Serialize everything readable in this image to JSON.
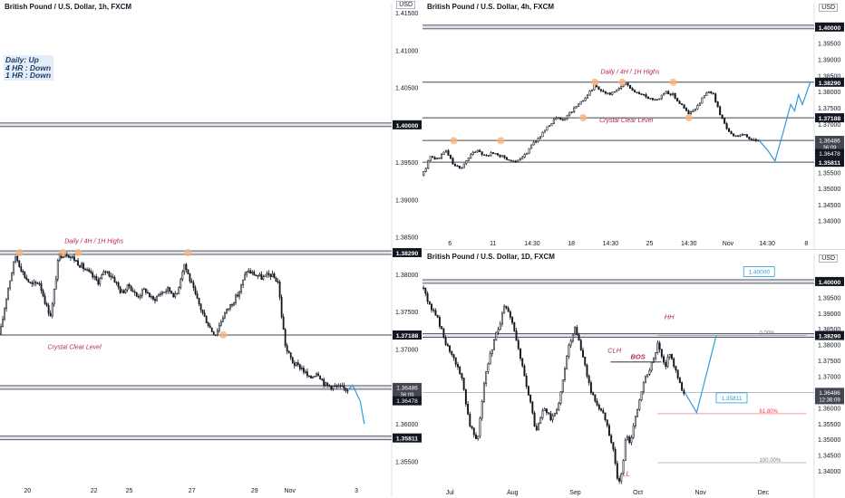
{
  "panels": [
    {
      "id": "p1",
      "title": "British Pound / U.S. Dollar, 1h, FXCM",
      "usd_label": "USD",
      "chart_data": {
        "type": "candlestick",
        "title": "British Pound / U.S. Dollar, 1h, FXCM",
        "ylim": [
          1.3525,
          1.415
        ],
        "yticks": [
          "1.35500",
          "1.36000",
          "1.36500",
          "1.37000",
          "1.37500",
          "1.38000",
          "1.38500",
          "1.39000",
          "1.39500",
          "1.40000",
          "1.40500",
          "1.41000",
          "1.41500"
        ],
        "xticks": [
          {
            "label": "20",
            "x": 0.07
          },
          {
            "label": "22",
            "x": 0.24
          },
          {
            "label": "25",
            "x": 0.33
          },
          {
            "label": "27",
            "x": 0.49
          },
          {
            "label": "29",
            "x": 0.65
          },
          {
            "label": "Nov",
            "x": 0.74
          },
          {
            "label": "3",
            "x": 0.91
          }
        ],
        "close_path": [
          [
            0.0,
            1.372
          ],
          [
            0.02,
            1.378
          ],
          [
            0.04,
            1.3825
          ],
          [
            0.06,
            1.38
          ],
          [
            0.08,
            1.3785
          ],
          [
            0.1,
            1.379
          ],
          [
            0.12,
            1.3755
          ],
          [
            0.13,
            1.3745
          ],
          [
            0.15,
            1.3825
          ],
          [
            0.17,
            1.3828
          ],
          [
            0.19,
            1.382
          ],
          [
            0.21,
            1.381
          ],
          [
            0.23,
            1.38
          ],
          [
            0.25,
            1.379
          ],
          [
            0.27,
            1.3805
          ],
          [
            0.29,
            1.3795
          ],
          [
            0.31,
            1.3775
          ],
          [
            0.33,
            1.3785
          ],
          [
            0.35,
            1.377
          ],
          [
            0.37,
            1.378
          ],
          [
            0.39,
            1.3765
          ],
          [
            0.41,
            1.3775
          ],
          [
            0.43,
            1.378
          ],
          [
            0.45,
            1.377
          ],
          [
            0.47,
            1.3815
          ],
          [
            0.48,
            1.38
          ],
          [
            0.5,
            1.377
          ],
          [
            0.52,
            1.3745
          ],
          [
            0.54,
            1.3725
          ],
          [
            0.55,
            1.372
          ],
          [
            0.57,
            1.3745
          ],
          [
            0.59,
            1.376
          ],
          [
            0.61,
            1.3775
          ],
          [
            0.63,
            1.3805
          ],
          [
            0.65,
            1.38
          ],
          [
            0.67,
            1.3795
          ],
          [
            0.69,
            1.38
          ],
          [
            0.71,
            1.379
          ],
          [
            0.72,
            1.374
          ],
          [
            0.73,
            1.37
          ],
          [
            0.75,
            1.368
          ],
          [
            0.77,
            1.3675
          ],
          [
            0.79,
            1.366
          ],
          [
            0.81,
            1.367
          ],
          [
            0.83,
            1.3652
          ],
          [
            0.85,
            1.365
          ],
          [
            0.87,
            1.3648
          ],
          [
            0.89,
            1.3646
          ]
        ],
        "levels": [
          {
            "price": 1.4,
            "label": "1.40000",
            "style": "double"
          },
          {
            "price": 1.3829,
            "label": "1.38290",
            "style": "double"
          },
          {
            "price": 1.37188,
            "label": "1.37188",
            "style": "single"
          },
          {
            "price": 1.36486,
            "label": "1.36486",
            "style": "double"
          },
          {
            "price": 1.35811,
            "label": "1.35811",
            "style": "double"
          }
        ],
        "price_tags": [
          {
            "label": "1.36486",
            "sub": "36:09",
            "price": 1.36486
          },
          {
            "label": "1.36478",
            "price": 1.36478
          }
        ],
        "annotations": [
          {
            "text": "Daily / 4H / 1H Highs",
            "x": 0.24,
            "price": 1.3842
          },
          {
            "text": "Crystal Clear Level",
            "x": 0.19,
            "price": 1.37
          }
        ],
        "info_box": [
          "Daily:  Up",
          "4 HR :  Down",
          "1 HR :  Down"
        ],
        "projection": [
          [
            0.89,
            1.3646
          ],
          [
            0.9,
            1.3652
          ],
          [
            0.92,
            1.363
          ],
          [
            0.93,
            1.36
          ]
        ],
        "highlights": [
          [
            0.05,
            1.3829
          ],
          [
            0.16,
            1.3829
          ],
          [
            0.2,
            1.3829
          ],
          [
            0.48,
            1.3829
          ],
          [
            0.57,
            1.3719
          ]
        ]
      }
    },
    {
      "id": "p2",
      "title": "British Pound / U.S. Dollar, 4h, FXCM",
      "usd_label": "USD",
      "chart_data": {
        "type": "candlestick",
        "title": "British Pound / U.S. Dollar, 4h, FXCM",
        "ylim": [
          1.336,
          1.405
        ],
        "yticks": [
          "1.34000",
          "1.34500",
          "1.35000",
          "1.35500",
          "1.36000",
          "1.36500",
          "1.37000",
          "1.37500",
          "1.38000",
          "1.38500",
          "1.39000",
          "1.39500",
          "1.40000"
        ],
        "xticks": [
          {
            "label": "6",
            "x": 0.07
          },
          {
            "label": "11",
            "x": 0.18
          },
          {
            "label": "14:30",
            "x": 0.28
          },
          {
            "label": "18",
            "x": 0.38
          },
          {
            "label": "14:30",
            "x": 0.48
          },
          {
            "label": "25",
            "x": 0.58
          },
          {
            "label": "14:30",
            "x": 0.68
          },
          {
            "label": "Nov",
            "x": 0.78
          },
          {
            "label": "14:30",
            "x": 0.88
          },
          {
            "label": "8",
            "x": 0.98
          }
        ],
        "close_path": [
          [
            0.0,
            1.354
          ],
          [
            0.02,
            1.36
          ],
          [
            0.04,
            1.359
          ],
          [
            0.06,
            1.362
          ],
          [
            0.08,
            1.357
          ],
          [
            0.1,
            1.3565
          ],
          [
            0.12,
            1.36
          ],
          [
            0.14,
            1.362
          ],
          [
            0.16,
            1.36
          ],
          [
            0.18,
            1.361
          ],
          [
            0.2,
            1.36
          ],
          [
            0.22,
            1.359
          ],
          [
            0.24,
            1.358
          ],
          [
            0.26,
            1.36
          ],
          [
            0.28,
            1.364
          ],
          [
            0.3,
            1.366
          ],
          [
            0.32,
            1.369
          ],
          [
            0.34,
            1.372
          ],
          [
            0.36,
            1.371
          ],
          [
            0.38,
            1.374
          ],
          [
            0.4,
            1.376
          ],
          [
            0.42,
            1.379
          ],
          [
            0.44,
            1.382
          ],
          [
            0.46,
            1.38
          ],
          [
            0.48,
            1.379
          ],
          [
            0.5,
            1.381
          ],
          [
            0.52,
            1.3825
          ],
          [
            0.54,
            1.38
          ],
          [
            0.56,
            1.379
          ],
          [
            0.58,
            1.378
          ],
          [
            0.6,
            1.3775
          ],
          [
            0.62,
            1.38
          ],
          [
            0.64,
            1.379
          ],
          [
            0.66,
            1.376
          ],
          [
            0.68,
            1.373
          ],
          [
            0.7,
            1.375
          ],
          [
            0.72,
            1.379
          ],
          [
            0.74,
            1.38
          ],
          [
            0.76,
            1.373
          ],
          [
            0.78,
            1.368
          ],
          [
            0.8,
            1.366
          ],
          [
            0.82,
            1.367
          ],
          [
            0.84,
            1.365
          ],
          [
            0.86,
            1.3648
          ]
        ],
        "levels": [
          {
            "price": 1.4,
            "label": "1.40000",
            "style": "double"
          },
          {
            "price": 1.3829,
            "label": "1.38290",
            "style": "single"
          },
          {
            "price": 1.37188,
            "label": "1.37188",
            "style": "single"
          },
          {
            "price": 1.36486,
            "label": "1.36486",
            "style": "single"
          },
          {
            "price": 1.35811,
            "label": "1.35811",
            "style": "single"
          }
        ],
        "price_tags": [
          {
            "label": "1.36486",
            "sub": "36:09",
            "price": 1.36486
          },
          {
            "label": "1.36478",
            "price": 1.36478
          }
        ],
        "annotations": [
          {
            "text": "Daily / 4H / 1H Highs",
            "x": 0.53,
            "price": 1.3855
          },
          {
            "text": "Crystal Clear Level",
            "x": 0.52,
            "price": 1.3705
          }
        ],
        "projection": [
          [
            0.86,
            1.3648
          ],
          [
            0.88,
            1.362
          ],
          [
            0.9,
            1.3585
          ],
          [
            0.92,
            1.367
          ],
          [
            0.94,
            1.376
          ],
          [
            0.95,
            1.374
          ],
          [
            0.96,
            1.379
          ],
          [
            0.97,
            1.376
          ],
          [
            0.99,
            1.3829
          ]
        ],
        "highlights": [
          [
            0.08,
            1.3648
          ],
          [
            0.2,
            1.3648
          ],
          [
            0.41,
            1.3719
          ],
          [
            0.44,
            1.3829
          ],
          [
            0.51,
            1.3829
          ],
          [
            0.64,
            1.3829
          ],
          [
            0.68,
            1.3719
          ]
        ]
      }
    },
    {
      "id": "p3",
      "title": "British Pound / U.S. Dollar, 1D, FXCM",
      "usd_label": "USD",
      "chart_data": {
        "type": "candlestick",
        "title": "British Pound / U.S. Dollar, 1D, FXCM",
        "ylim": [
          1.336,
          1.406
        ],
        "yticks": [
          "1.34000",
          "1.34500",
          "1.35000",
          "1.35500",
          "1.36000",
          "1.36500",
          "1.37000",
          "1.37500",
          "1.38000",
          "1.38500",
          "1.39000",
          "1.39500",
          "1.40000"
        ],
        "xticks": [
          {
            "label": "Jul",
            "x": 0.07
          },
          {
            "label": "Aug",
            "x": 0.23
          },
          {
            "label": "Sep",
            "x": 0.39
          },
          {
            "label": "Oct",
            "x": 0.55
          },
          {
            "label": "Nov",
            "x": 0.71
          },
          {
            "label": "Dec",
            "x": 0.87
          }
        ],
        "close_path": [
          [
            0.0,
            1.398
          ],
          [
            0.02,
            1.392
          ],
          [
            0.04,
            1.388
          ],
          [
            0.06,
            1.38
          ],
          [
            0.08,
            1.375
          ],
          [
            0.1,
            1.37
          ],
          [
            0.12,
            1.355
          ],
          [
            0.14,
            1.35
          ],
          [
            0.16,
            1.37
          ],
          [
            0.18,
            1.38
          ],
          [
            0.2,
            1.388
          ],
          [
            0.21,
            1.392
          ],
          [
            0.23,
            1.387
          ],
          [
            0.25,
            1.375
          ],
          [
            0.27,
            1.365
          ],
          [
            0.29,
            1.352
          ],
          [
            0.31,
            1.36
          ],
          [
            0.33,
            1.356
          ],
          [
            0.35,
            1.362
          ],
          [
            0.37,
            1.378
          ],
          [
            0.39,
            1.385
          ],
          [
            0.41,
            1.376
          ],
          [
            0.43,
            1.365
          ],
          [
            0.45,
            1.36
          ],
          [
            0.47,
            1.356
          ],
          [
            0.48,
            1.35
          ],
          [
            0.49,
            1.345
          ],
          [
            0.5,
            1.335
          ],
          [
            0.51,
            1.34
          ],
          [
            0.52,
            1.352
          ],
          [
            0.53,
            1.348
          ],
          [
            0.54,
            1.356
          ],
          [
            0.55,
            1.36
          ],
          [
            0.57,
            1.37
          ],
          [
            0.59,
            1.375
          ],
          [
            0.6,
            1.38
          ],
          [
            0.61,
            1.376
          ],
          [
            0.62,
            1.372
          ],
          [
            0.63,
            1.378
          ],
          [
            0.65,
            1.37
          ],
          [
            0.66,
            1.366
          ],
          [
            0.67,
            1.3648
          ]
        ],
        "levels": [
          {
            "price": 1.4,
            "label": "1.40000",
            "style": "double"
          },
          {
            "price": 1.3829,
            "label": "1.38290",
            "style": "double"
          },
          {
            "price": 1.36486,
            "label": "1.36486",
            "style": "thin"
          }
        ],
        "price_tags": [
          {
            "label": "1.36486",
            "sub": "12:36:09",
            "price": 1.36486
          }
        ],
        "callouts": [
          {
            "label": "1.40000",
            "x": 0.82,
            "price": 1.403
          },
          {
            "label": "1.35811",
            "x": 0.75,
            "price": 1.363
          }
        ],
        "fib_levels": [
          {
            "label": "0.00%",
            "price": 1.3829,
            "color": "#787b86"
          },
          {
            "label": "61.80%",
            "price": 1.35811,
            "color": "#f23645"
          },
          {
            "label": "100.00%",
            "price": 1.3426,
            "color": "#787b86"
          }
        ],
        "bos_line": {
          "price": 1.3745,
          "x1": 0.48,
          "x2": 0.61
        },
        "annotations": [
          {
            "text": "HH",
            "x": 0.63,
            "price": 1.388
          },
          {
            "text": "CLH",
            "x": 0.49,
            "price": 1.3775
          },
          {
            "text": "BOS",
            "x": 0.55,
            "price": 1.3755
          },
          {
            "text": "LL",
            "x": 0.52,
            "price": 1.3385
          }
        ],
        "projection": [
          [
            0.67,
            1.3648
          ],
          [
            0.7,
            1.3585
          ],
          [
            0.75,
            1.3829
          ]
        ]
      }
    }
  ]
}
